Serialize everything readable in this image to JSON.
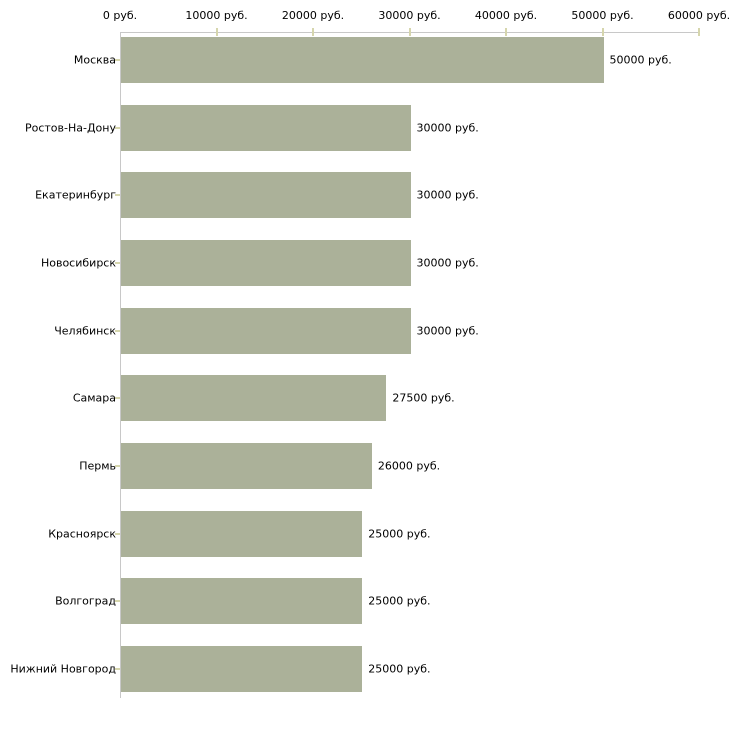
{
  "chart_data": {
    "type": "bar",
    "orientation": "horizontal",
    "title": "",
    "xlabel": "",
    "ylabel": "",
    "unit": "руб.",
    "xlim": [
      0,
      60000
    ],
    "grid": false,
    "legend": null,
    "x_tick_values": [
      0,
      10000,
      20000,
      30000,
      40000,
      50000,
      60000
    ],
    "x_tick_labels": [
      "0 руб.",
      "10000 руб.",
      "20000 руб.",
      "30000 руб.",
      "40000 руб.",
      "50000 руб.",
      "60000 руб."
    ],
    "categories": [
      "Москва",
      "Ростов-На-Дону",
      "Екатеринбург",
      "Новосибирск",
      "Челябинск",
      "Самара",
      "Пермь",
      "Красноярск",
      "Волгоград",
      "Нижний Новгород"
    ],
    "values": [
      50000,
      30000,
      30000,
      30000,
      30000,
      27500,
      26000,
      25000,
      25000,
      25000
    ],
    "value_labels": [
      "50000 руб.",
      "30000 руб.",
      "30000 руб.",
      "30000 руб.",
      "30000 руб.",
      "27500 руб.",
      "26000 руб.",
      "25000 руб.",
      "25000 руб.",
      "25000 руб."
    ],
    "colors": {
      "bar": "#abb199",
      "axis": "#c8c8c8",
      "tick": "#d6d6ad",
      "text": "#000000",
      "background": "#ffffff"
    }
  }
}
